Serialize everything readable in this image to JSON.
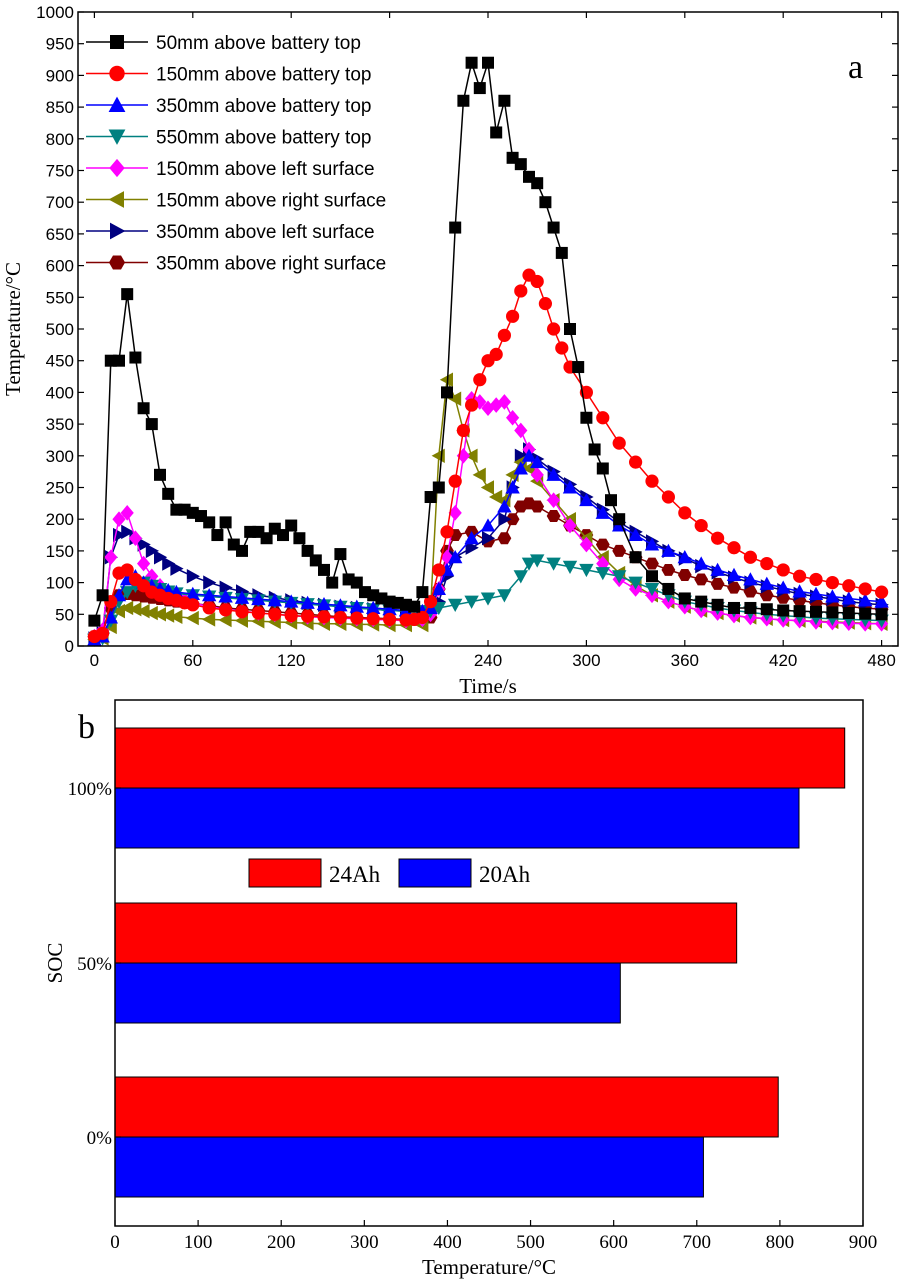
{
  "chart_data": [
    {
      "type": "line",
      "panel_label": "a",
      "xlabel": "Time/s",
      "ylabel": "Temperature/°C",
      "xlim": [
        -10,
        490
      ],
      "ylim": [
        0,
        1000
      ],
      "xticks": [
        "0",
        "60",
        "120",
        "180",
        "240",
        "300",
        "360",
        "420",
        "480"
      ],
      "yticks": [
        "0",
        "50",
        "100",
        "150",
        "200",
        "250",
        "300",
        "350",
        "400",
        "450",
        "500",
        "550",
        "600",
        "650",
        "700",
        "750",
        "800",
        "850",
        "900",
        "950",
        "1000"
      ],
      "legend_position": "top-left",
      "series": [
        {
          "name": "50mm above battery top",
          "color": "#000000",
          "marker": "square",
          "x": [
            0,
            5,
            10,
            15,
            20,
            25,
            30,
            35,
            40,
            45,
            50,
            55,
            60,
            65,
            70,
            75,
            80,
            85,
            90,
            95,
            100,
            105,
            110,
            115,
            120,
            125,
            130,
            135,
            140,
            145,
            150,
            155,
            160,
            165,
            170,
            175,
            180,
            185,
            190,
            195,
            200,
            205,
            210,
            215,
            220,
            225,
            230,
            235,
            240,
            245,
            250,
            255,
            260,
            265,
            270,
            275,
            280,
            285,
            290,
            295,
            300,
            305,
            310,
            315,
            320,
            330,
            340,
            350,
            360,
            370,
            380,
            390,
            400,
            410,
            420,
            430,
            440,
            450,
            460,
            470,
            480
          ],
          "y": [
            40,
            80,
            450,
            450,
            555,
            455,
            375,
            350,
            270,
            240,
            215,
            215,
            210,
            205,
            195,
            175,
            195,
            160,
            150,
            180,
            180,
            170,
            185,
            175,
            190,
            170,
            150,
            135,
            120,
            100,
            145,
            105,
            100,
            85,
            80,
            75,
            70,
            68,
            65,
            62,
            85,
            235,
            250,
            400,
            660,
            860,
            920,
            880,
            920,
            810,
            860,
            770,
            760,
            740,
            730,
            700,
            660,
            620,
            500,
            440,
            360,
            310,
            280,
            230,
            200,
            140,
            110,
            90,
            75,
            70,
            65,
            60,
            60,
            58,
            56,
            55,
            54,
            53,
            52,
            51,
            50
          ]
        },
        {
          "name": "150mm above battery top",
          "color": "#ff0000",
          "marker": "circle",
          "x": [
            0,
            5,
            10,
            15,
            20,
            25,
            30,
            35,
            40,
            45,
            50,
            55,
            60,
            70,
            80,
            90,
            100,
            110,
            120,
            130,
            140,
            150,
            160,
            170,
            180,
            190,
            195,
            200,
            205,
            210,
            215,
            220,
            225,
            230,
            235,
            240,
            245,
            250,
            255,
            260,
            265,
            270,
            275,
            280,
            285,
            290,
            300,
            310,
            320,
            330,
            340,
            350,
            360,
            370,
            380,
            390,
            400,
            410,
            420,
            430,
            440,
            450,
            460,
            470,
            480
          ],
          "y": [
            15,
            20,
            70,
            115,
            120,
            105,
            95,
            85,
            80,
            75,
            72,
            68,
            65,
            60,
            57,
            54,
            52,
            50,
            48,
            47,
            46,
            45,
            44,
            43,
            42,
            41,
            42,
            45,
            70,
            120,
            180,
            260,
            340,
            380,
            420,
            450,
            460,
            490,
            520,
            560,
            585,
            575,
            540,
            500,
            470,
            440,
            400,
            360,
            320,
            290,
            260,
            235,
            210,
            190,
            170,
            155,
            140,
            130,
            120,
            110,
            105,
            100,
            95,
            90,
            85
          ]
        },
        {
          "name": "350mm above battery top",
          "color": "#0000ff",
          "marker": "triangle-up",
          "x": [
            0,
            5,
            10,
            15,
            20,
            25,
            30,
            35,
            40,
            45,
            50,
            60,
            70,
            80,
            90,
            100,
            110,
            120,
            130,
            140,
            150,
            160,
            170,
            180,
            190,
            200,
            205,
            210,
            215,
            220,
            230,
            240,
            250,
            255,
            260,
            265,
            270,
            280,
            290,
            300,
            310,
            320,
            330,
            340,
            350,
            360,
            370,
            380,
            390,
            400,
            410,
            420,
            430,
            440,
            450,
            460,
            470,
            480
          ],
          "y": [
            10,
            15,
            45,
            80,
            105,
            110,
            100,
            95,
            90,
            88,
            85,
            82,
            80,
            78,
            76,
            74,
            72,
            70,
            68,
            66,
            64,
            62,
            60,
            58,
            56,
            55,
            60,
            90,
            120,
            140,
            170,
            190,
            220,
            250,
            280,
            300,
            290,
            270,
            250,
            230,
            210,
            190,
            175,
            160,
            150,
            140,
            130,
            120,
            112,
            105,
            98,
            92,
            86,
            82,
            78,
            75,
            72,
            70
          ]
        },
        {
          "name": "550mm above battery top",
          "color": "#008080",
          "marker": "triangle-down",
          "x": [
            0,
            5,
            10,
            15,
            20,
            25,
            30,
            35,
            40,
            45,
            50,
            60,
            70,
            80,
            90,
            100,
            110,
            120,
            130,
            140,
            150,
            160,
            170,
            180,
            190,
            200,
            205,
            210,
            220,
            230,
            240,
            250,
            260,
            265,
            270,
            280,
            290,
            300,
            310,
            320,
            330,
            340,
            350,
            360,
            370,
            380,
            390,
            400,
            410,
            420,
            430,
            440,
            450,
            460,
            470,
            480
          ],
          "y": [
            10,
            12,
            40,
            70,
            85,
            95,
            100,
            95,
            90,
            86,
            83,
            80,
            78,
            76,
            74,
            72,
            70,
            68,
            66,
            64,
            62,
            60,
            58,
            56,
            55,
            55,
            55,
            60,
            65,
            70,
            75,
            80,
            110,
            130,
            135,
            130,
            125,
            120,
            115,
            110,
            100,
            90,
            80,
            70,
            65,
            60,
            56,
            53,
            50,
            48,
            46,
            44,
            43,
            42,
            41,
            40
          ]
        },
        {
          "name": "150mm above left surface",
          "color": "#ff00ff",
          "marker": "diamond",
          "x": [
            0,
            5,
            10,
            15,
            20,
            25,
            30,
            35,
            40,
            45,
            50,
            55,
            60,
            70,
            80,
            90,
            100,
            110,
            120,
            130,
            140,
            150,
            160,
            170,
            180,
            190,
            200,
            205,
            210,
            215,
            220,
            225,
            230,
            235,
            240,
            245,
            250,
            255,
            260,
            265,
            270,
            280,
            290,
            300,
            310,
            320,
            330,
            340,
            350,
            360,
            370,
            380,
            390,
            400,
            410,
            420,
            430,
            440,
            450,
            460,
            470,
            480
          ],
          "y": [
            15,
            25,
            140,
            200,
            210,
            170,
            130,
            110,
            95,
            85,
            78,
            72,
            68,
            62,
            58,
            55,
            52,
            50,
            48,
            46,
            45,
            44,
            43,
            42,
            41,
            40,
            42,
            50,
            90,
            140,
            210,
            300,
            390,
            385,
            375,
            380,
            385,
            360,
            340,
            310,
            270,
            230,
            190,
            160,
            130,
            105,
            90,
            80,
            70,
            62,
            56,
            52,
            48,
            45,
            43,
            41,
            40,
            38,
            37,
            36,
            35,
            35
          ]
        },
        {
          "name": "150mm above right surface",
          "color": "#808000",
          "marker": "triangle-left",
          "x": [
            0,
            5,
            10,
            15,
            20,
            25,
            30,
            35,
            40,
            45,
            50,
            60,
            70,
            80,
            90,
            100,
            110,
            120,
            130,
            140,
            150,
            160,
            170,
            180,
            190,
            200,
            205,
            210,
            215,
            220,
            225,
            230,
            235,
            240,
            245,
            250,
            255,
            260,
            265,
            270,
            280,
            290,
            300,
            310,
            320,
            330,
            340,
            350,
            360,
            370,
            380,
            390,
            400,
            410,
            420,
            430,
            440,
            450,
            460,
            470,
            480
          ],
          "y": [
            10,
            12,
            30,
            55,
            60,
            58,
            55,
            52,
            50,
            48,
            46,
            44,
            42,
            41,
            40,
            39,
            38,
            37,
            36,
            35,
            35,
            34,
            34,
            33,
            33,
            33,
            60,
            300,
            420,
            390,
            340,
            300,
            270,
            250,
            235,
            230,
            270,
            290,
            280,
            260,
            230,
            200,
            170,
            140,
            115,
            95,
            80,
            70,
            62,
            56,
            52,
            48,
            45,
            43,
            41,
            40,
            39,
            38,
            37,
            36,
            35
          ]
        },
        {
          "name": "350mm above left surface",
          "color": "#000080",
          "marker": "triangle-right",
          "x": [
            0,
            5,
            10,
            15,
            20,
            25,
            30,
            35,
            40,
            45,
            50,
            60,
            70,
            80,
            90,
            100,
            110,
            120,
            130,
            140,
            150,
            160,
            170,
            180,
            190,
            200,
            205,
            210,
            215,
            220,
            230,
            240,
            250,
            255,
            260,
            265,
            270,
            280,
            290,
            300,
            310,
            320,
            330,
            340,
            350,
            360,
            370,
            380,
            390,
            400,
            410,
            420,
            430,
            440,
            450,
            460,
            470,
            480
          ],
          "y": [
            12,
            20,
            140,
            175,
            180,
            170,
            160,
            150,
            140,
            130,
            122,
            110,
            100,
            92,
            86,
            80,
            76,
            72,
            68,
            65,
            62,
            60,
            58,
            56,
            55,
            54,
            55,
            70,
            110,
            140,
            155,
            170,
            200,
            250,
            300,
            310,
            295,
            275,
            255,
            235,
            215,
            195,
            180,
            165,
            150,
            138,
            126,
            116,
            108,
            100,
            94,
            88,
            82,
            78,
            74,
            70,
            67,
            65
          ]
        },
        {
          "name": "350mm above right surface",
          "color": "#800000",
          "marker": "hexagon",
          "x": [
            0,
            5,
            10,
            15,
            20,
            25,
            30,
            35,
            40,
            45,
            50,
            60,
            70,
            80,
            90,
            100,
            110,
            120,
            130,
            140,
            150,
            160,
            170,
            180,
            190,
            200,
            205,
            210,
            215,
            220,
            230,
            240,
            250,
            255,
            260,
            265,
            270,
            280,
            290,
            300,
            310,
            320,
            330,
            340,
            350,
            360,
            370,
            380,
            390,
            400,
            410,
            420,
            430,
            440,
            450,
            460,
            470,
            480
          ],
          "y": [
            15,
            20,
            60,
            80,
            82,
            80,
            78,
            76,
            74,
            72,
            70,
            67,
            64,
            60,
            58,
            56,
            54,
            52,
            50,
            48,
            46,
            45,
            44,
            43,
            42,
            41,
            45,
            90,
            150,
            175,
            180,
            165,
            170,
            200,
            220,
            225,
            220,
            205,
            190,
            175,
            160,
            150,
            140,
            130,
            120,
            112,
            105,
            98,
            92,
            86,
            80,
            76,
            72,
            68,
            65,
            62,
            60,
            58
          ]
        }
      ]
    },
    {
      "type": "bar",
      "orientation": "horizontal",
      "panel_label": "b",
      "xlabel": "Temperature/°C",
      "ylabel": "SOC",
      "xlim": [
        0,
        900
      ],
      "xticks": [
        "0",
        "100",
        "200",
        "300",
        "400",
        "500",
        "600",
        "700",
        "800",
        "900"
      ],
      "categories": [
        "100%",
        "50%",
        "0%"
      ],
      "legend_position": "center",
      "series": [
        {
          "name": "24Ah",
          "color": "#ff0000",
          "values": [
            878,
            748,
            798
          ]
        },
        {
          "name": "20Ah",
          "color": "#0000ff",
          "values": [
            823,
            608,
            708
          ]
        }
      ]
    }
  ]
}
